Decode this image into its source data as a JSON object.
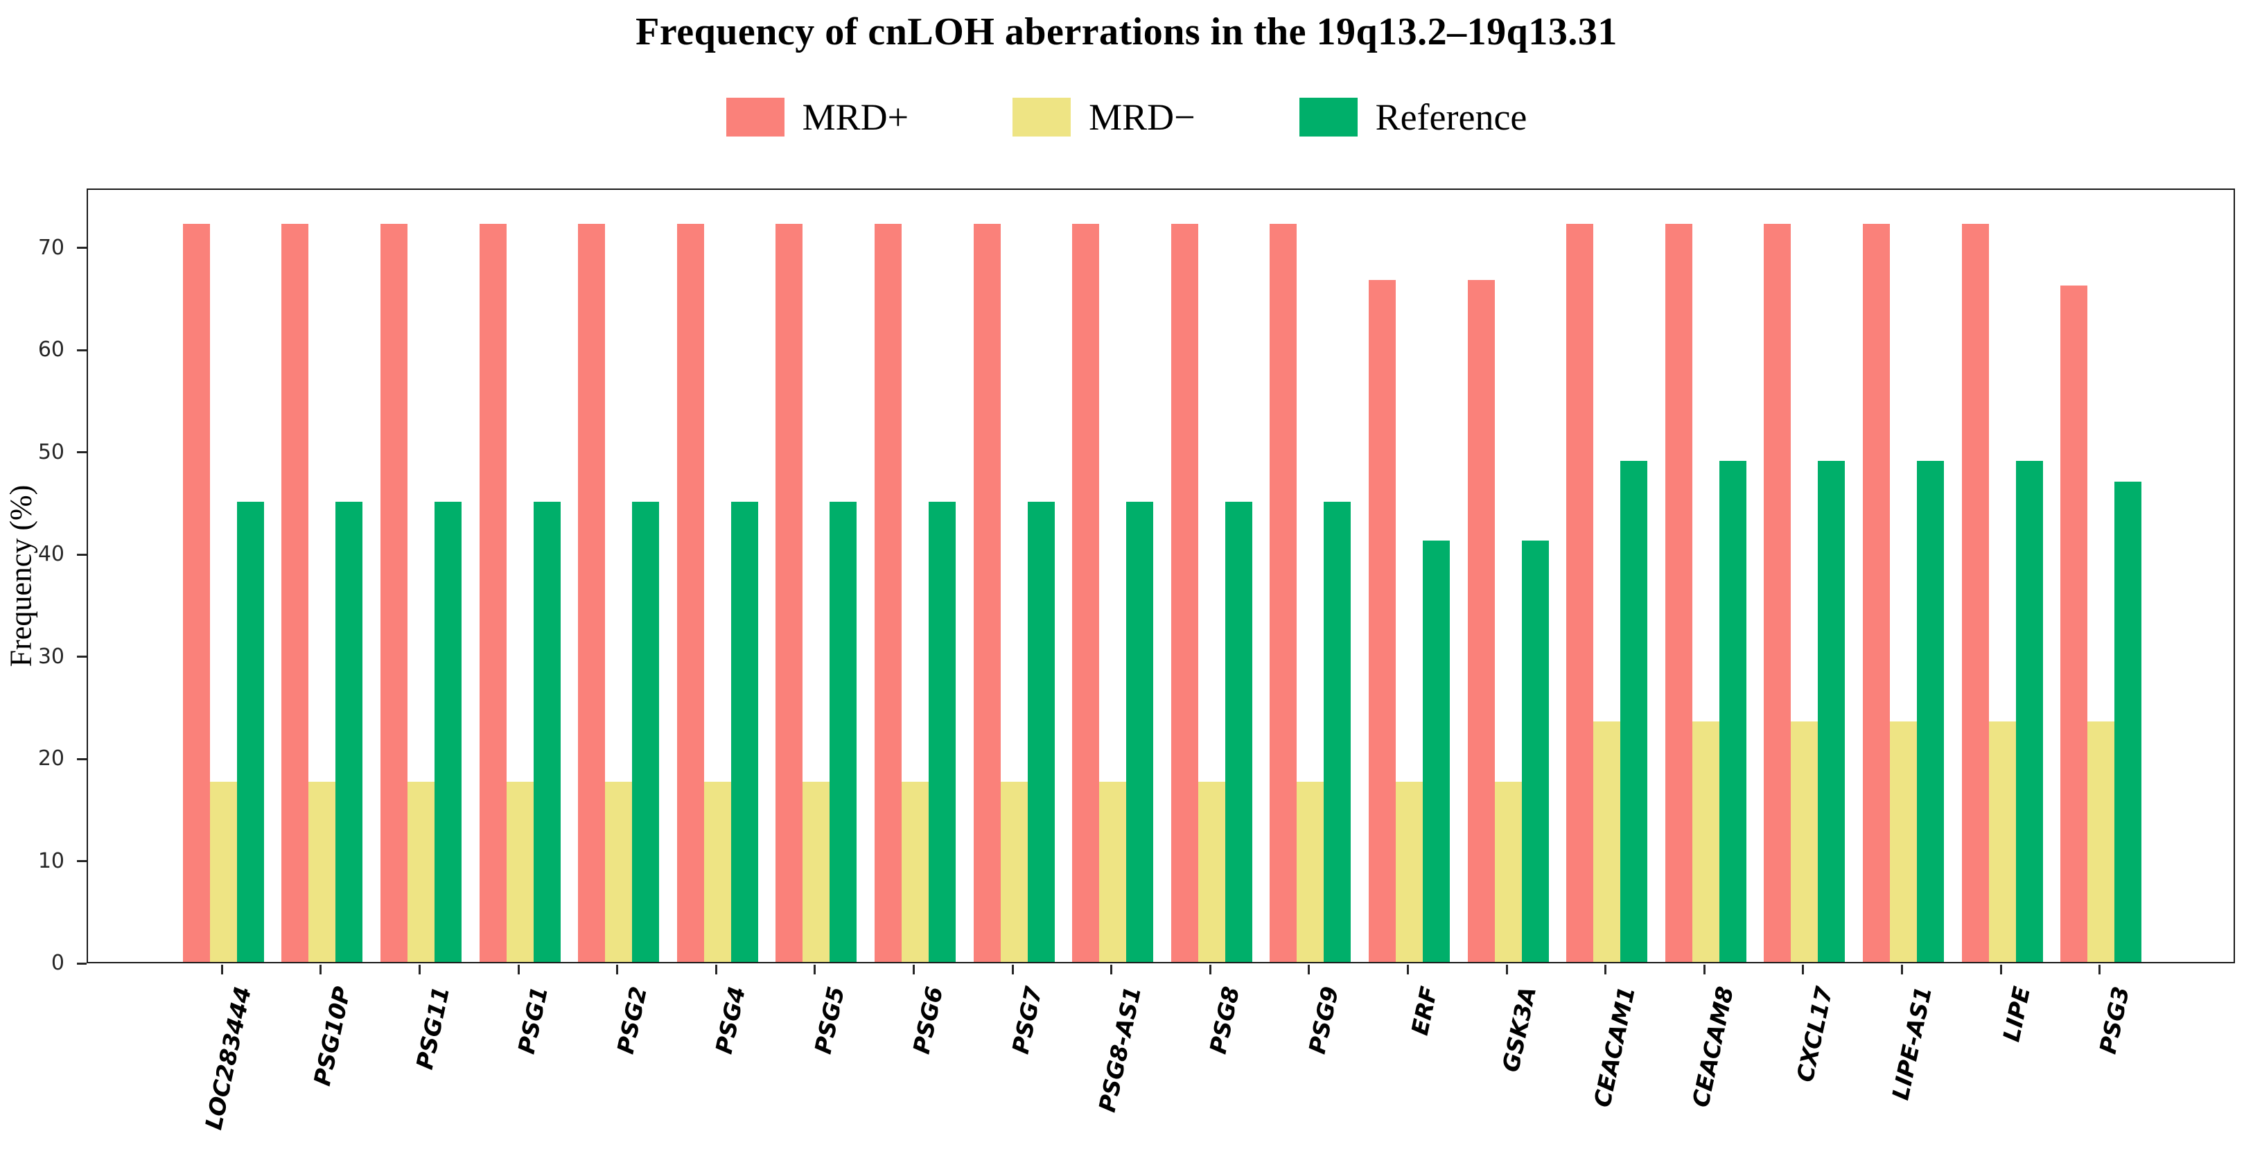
{
  "title": "Frequency of cnLOH aberrations in the 19q13.2–19q13.31",
  "legend": [
    {
      "label": "MRD+",
      "color": "#FA817A"
    },
    {
      "label": "MRD−",
      "color": "#EEE484"
    },
    {
      "label": "Reference",
      "color": "#00AF6A"
    }
  ],
  "chart_data": {
    "type": "bar",
    "title": "Frequency of cnLOH aberrations in the 19q13.2–19q13.31",
    "xlabel": "",
    "ylabel": "Frequency (%)",
    "ylim": [
      0,
      75.8
    ],
    "yticks": [
      0,
      10,
      20,
      30,
      40,
      50,
      60,
      70
    ],
    "grid": false,
    "legend_position": "top-center",
    "categories": [
      "LOC283444",
      "PSG10P",
      "PSG11",
      "PSG1",
      "PSG2",
      "PSG4",
      "PSG5",
      "PSG6",
      "PSG7",
      "PSG8-AS1",
      "PSG8",
      "PSG9",
      "ERF",
      "GSK3A",
      "CEACAM1",
      "CEACAM8",
      "CXCL17",
      "LIPE-AS1",
      "LIPE",
      "PSG3"
    ],
    "series": [
      {
        "name": "MRD+",
        "color": "#FA817A",
        "values": [
          72.2,
          72.2,
          72.2,
          72.2,
          72.2,
          72.2,
          72.2,
          72.2,
          72.2,
          72.2,
          72.2,
          72.2,
          66.7,
          66.7,
          72.2,
          72.2,
          72.2,
          72.2,
          72.2,
          66.2
        ]
      },
      {
        "name": "MRD−",
        "color": "#EEE484",
        "values": [
          17.6,
          17.6,
          17.6,
          17.6,
          17.6,
          17.6,
          17.6,
          17.6,
          17.6,
          17.6,
          17.6,
          17.6,
          17.6,
          17.6,
          23.5,
          23.5,
          23.5,
          23.5,
          23.5,
          23.5
        ]
      },
      {
        "name": "Reference",
        "color": "#00AF6A",
        "values": [
          45,
          45,
          45,
          45,
          45,
          45,
          45,
          45,
          45,
          45,
          45,
          45,
          41.2,
          41.2,
          49,
          49,
          49,
          49,
          49,
          47
        ]
      }
    ]
  }
}
